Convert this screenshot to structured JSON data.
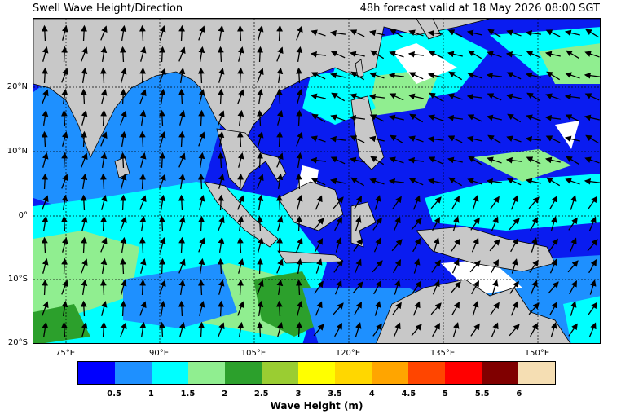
{
  "header": {
    "title": "Swell Wave Height/Direction",
    "forecast": "48h forecast valid at 18 May 2026 08:00 SGT"
  },
  "map": {
    "lat_labels": [
      "20°N",
      "10°N",
      "0°",
      "10°S",
      "20°S"
    ],
    "lon_labels": [
      "75°E",
      "90°E",
      "105°E",
      "120°E",
      "135°E",
      "150°E"
    ],
    "land_color": "#c8c8c8",
    "ocean_base_color": "#0a1cf0"
  },
  "colorbar": {
    "label": "Wave Height (m)",
    "ticks": [
      "0.5",
      "1",
      "1.5",
      "2",
      "2.5",
      "3",
      "3.5",
      "4",
      "4.5",
      "5",
      "5.5",
      "6"
    ],
    "colors": [
      "#0000ff",
      "#1e90ff",
      "#00ffff",
      "#90ee90",
      "#2ca02c",
      "#9acd32",
      "#ffff00",
      "#ffd700",
      "#ffa500",
      "#ff4500",
      "#ff0000",
      "#800000",
      "#f5deb3"
    ]
  }
}
